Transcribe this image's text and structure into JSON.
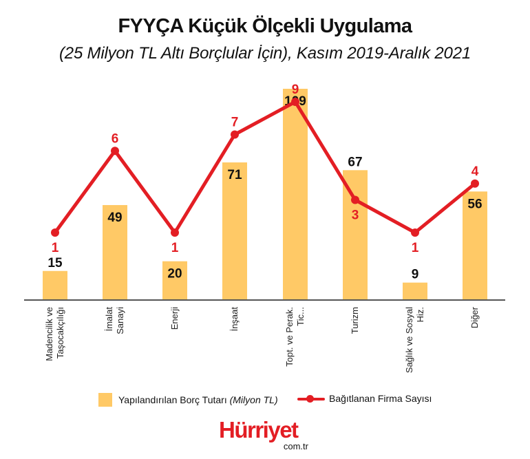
{
  "header": {
    "title": "FYYÇA Küçük Ölçekli Uygulama",
    "subtitle": "(25 Milyon TL Altı Borçlular İçin), Kasım 2019-Aralık 2021"
  },
  "colors": {
    "bar": "#FFC966",
    "line": "#E31E24",
    "axis": "#555555",
    "bar_label": "#111111",
    "line_label": "#E31E24"
  },
  "categories": [
    {
      "line1": "Madencilik ve",
      "line2": "Taşocakçılığı"
    },
    {
      "line1": "İmalat",
      "line2": "Sanayi"
    },
    {
      "line1": "Enerji",
      "line2": ""
    },
    {
      "line1": "İnşaat",
      "line2": ""
    },
    {
      "line1": "Topt. ve Perak.",
      "line2": "Tic..."
    },
    {
      "line1": "Turizm",
      "line2": ""
    },
    {
      "line1": "Sağlık ve Sosyal",
      "line2": "Hiz."
    },
    {
      "line1": "Diğer",
      "line2": ""
    }
  ],
  "legend": {
    "bar_label": "Yapılandırılan Borç Tutarı ",
    "bar_unit": "(Milyon TL)",
    "line_label": "Bağıtlanan Firma Sayısı"
  },
  "logo": {
    "brand": "Hürriyet",
    "domain": "com.tr"
  },
  "chart_data": {
    "type": "bar+line",
    "title": "FYYÇA Küçük Ölçekli Uygulama",
    "subtitle": "(25 Milyon TL Altı Borçlular İçin), Kasım 2019-Aralık 2021",
    "categories": [
      "Madencilik ve Taşocakçılığı",
      "İmalat Sanayi",
      "Enerji",
      "İnşaat",
      "Topt. ve Perak. Tic...",
      "Turizm",
      "Sağlık ve Sosyal Hiz.",
      "Diğer"
    ],
    "series": [
      {
        "name": "Yapılandırılan Borç Tutarı (Milyon TL)",
        "type": "bar",
        "values": [
          15,
          49,
          20,
          71,
          109,
          67,
          9,
          56
        ]
      },
      {
        "name": "Bağıtlanan Firma Sayısı",
        "type": "line",
        "values": [
          1,
          6,
          1,
          7,
          9,
          3,
          1,
          4
        ]
      }
    ],
    "xlabel": "",
    "ylabel": "",
    "grid": false,
    "legend_position": "bottom"
  }
}
